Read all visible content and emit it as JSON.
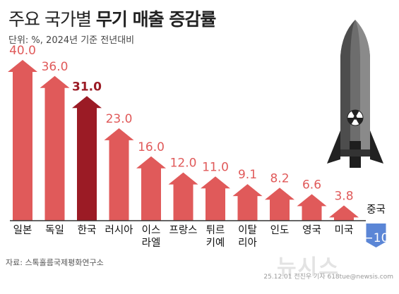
{
  "title_light": "주요 국가별",
  "title_bold": "무기 매출 증감률",
  "subtitle": "단위: %, 2024년 기준 전년대비",
  "source": "자료: 스톡홀름국제평화연구소",
  "credit": "25.12.01 전진우 기자 618tue@newsis.com",
  "watermark": "뉴시스",
  "colors": {
    "bar": "#e05a5a",
    "highlight": "#9b1b25",
    "negative": "#5b86d6",
    "label": "#e05a5a"
  },
  "chart_data": {
    "type": "bar",
    "categories": [
      [
        "일본"
      ],
      [
        "독일"
      ],
      [
        "한국"
      ],
      [
        "러시아"
      ],
      [
        "이스",
        "라엘"
      ],
      [
        "프랑스"
      ],
      [
        "튀르",
        "키예"
      ],
      [
        "이탈",
        "리아"
      ],
      [
        "인도"
      ],
      [
        "영국"
      ],
      [
        "미국"
      ],
      [
        "중국"
      ]
    ],
    "values": [
      40.0,
      36.0,
      31.0,
      23.0,
      16.0,
      12.0,
      11.0,
      9.1,
      8.2,
      6.6,
      3.8,
      -10
    ],
    "labels": [
      "40.0",
      "36.0",
      "31.0",
      "23.0",
      "16.0",
      "12.0",
      "11.0",
      "9.1",
      "8.2",
      "6.6",
      "3.8",
      "−10"
    ],
    "highlight_index": 2,
    "unit": "%"
  }
}
